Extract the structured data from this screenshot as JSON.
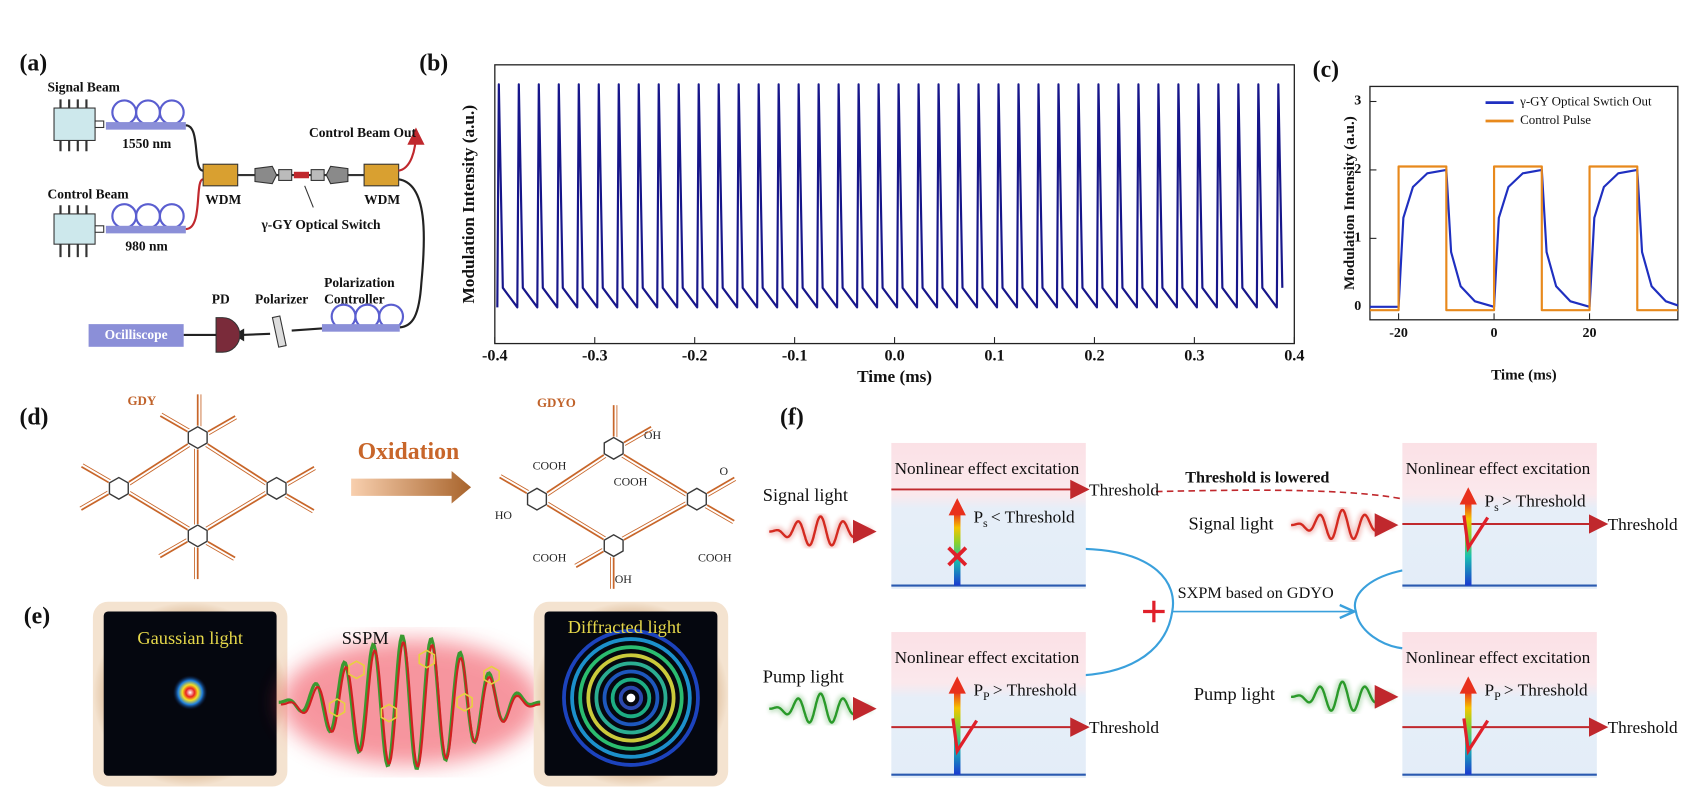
{
  "panel_labels": [
    "(a)",
    "(b)",
    "(c)",
    "(d)",
    "(e)",
    "(f)"
  ],
  "setup": {
    "signal_beam": "Signal Beam",
    "signal_wavelength": "1550 nm",
    "control_beam": "Control Beam",
    "control_wavelength": "980 nm",
    "wdm_in": "WDM",
    "wdm_out": "WDM",
    "control_out": "Control Beam Out",
    "switch": "γ-GY Optical Switch",
    "pol_controller": [
      "Polarization",
      "Controller"
    ],
    "pd": "PD",
    "polarizer": "Polarizer",
    "scope": "Ocilliscope"
  },
  "chart_data": [
    {
      "type": "line",
      "xlabel": "Time (ms)",
      "ylabel": "Modulation Intensity (a.u.)",
      "xlim": [
        -0.4,
        0.4
      ],
      "xticks": [
        -0.4,
        -0.3,
        -0.2,
        -0.1,
        {
          "value": 0,
          "label": "0.0"
        },
        0.1,
        0.2,
        0.3,
        0.4
      ],
      "ylim": [
        0,
        1
      ],
      "series": [
        {
          "color": "#17168a",
          "x": [
            -0.3975,
            -0.396,
            -0.392,
            -0.3775,
            -0.376,
            -0.372,
            -0.3575,
            -0.356,
            -0.352,
            -0.3375,
            -0.336,
            -0.332,
            -0.3175,
            -0.316,
            -0.312,
            -0.2975,
            -0.296,
            -0.292,
            -0.2775,
            -0.276,
            -0.272,
            -0.2575,
            -0.256,
            -0.252,
            -0.2375,
            -0.236,
            -0.232,
            -0.2175,
            -0.216,
            -0.212,
            -0.1975,
            -0.196,
            -0.192,
            -0.1775,
            -0.176,
            -0.172,
            -0.1575,
            -0.156,
            -0.152,
            -0.1375,
            -0.136,
            -0.132,
            -0.1175,
            -0.116,
            -0.112,
            -0.0975,
            -0.096,
            -0.092,
            -0.0775,
            -0.076,
            -0.072,
            -0.0575,
            -0.056,
            -0.052,
            -0.0375,
            -0.036,
            -0.032,
            -0.0175,
            -0.016,
            -0.012,
            0.0025,
            0.004,
            0.008,
            0.0225,
            0.024,
            0.028,
            0.0425,
            0.044,
            0.048,
            0.0625,
            0.064,
            0.068,
            0.0825,
            0.084,
            0.088,
            0.1025,
            0.104,
            0.108,
            0.1225,
            0.124,
            0.128,
            0.1425,
            0.144,
            0.148,
            0.1625,
            0.164,
            0.168,
            0.1825,
            0.184,
            0.188,
            0.2025,
            0.204,
            0.208,
            0.2225,
            0.224,
            0.228,
            0.2425,
            0.244,
            0.248,
            0.2625,
            0.264,
            0.268,
            0.2825,
            0.284,
            0.288,
            0.3025,
            0.304,
            0.308,
            0.3225,
            0.324,
            0.328,
            0.3425,
            0.344,
            0.348,
            0.3625,
            0.364,
            0.368,
            0.3825,
            0.384,
            0.388
          ],
          "values": [
            0.13,
            0.93,
            0.2,
            0.13,
            0.93,
            0.2,
            0.13,
            0.93,
            0.2,
            0.13,
            0.93,
            0.2,
            0.13,
            0.93,
            0.2,
            0.13,
            0.93,
            0.2,
            0.13,
            0.93,
            0.2,
            0.13,
            0.93,
            0.2,
            0.13,
            0.93,
            0.2,
            0.13,
            0.93,
            0.2,
            0.13,
            0.93,
            0.2,
            0.13,
            0.93,
            0.2,
            0.13,
            0.93,
            0.2,
            0.13,
            0.93,
            0.2,
            0.13,
            0.93,
            0.2,
            0.13,
            0.93,
            0.2,
            0.13,
            0.93,
            0.2,
            0.13,
            0.93,
            0.2,
            0.13,
            0.93,
            0.2,
            0.13,
            0.93,
            0.2,
            0.13,
            0.93,
            0.2,
            0.13,
            0.93,
            0.2,
            0.13,
            0.93,
            0.2,
            0.13,
            0.93,
            0.2,
            0.13,
            0.93,
            0.2,
            0.13,
            0.93,
            0.2,
            0.13,
            0.93,
            0.2,
            0.13,
            0.93,
            0.2,
            0.13,
            0.93,
            0.2,
            0.13,
            0.93,
            0.2,
            0.13,
            0.93,
            0.2,
            0.13,
            0.93,
            0.2,
            0.13,
            0.93,
            0.2,
            0.13,
            0.93,
            0.2,
            0.13,
            0.93,
            0.2,
            0.13,
            0.93,
            0.2,
            0.13,
            0.93,
            0.2,
            0.13,
            0.93,
            0.2,
            0.13,
            0.93,
            0.2,
            0.13,
            0.93,
            0.2
          ]
        }
      ]
    },
    {
      "type": "line",
      "xlabel": "Time (ms)",
      "ylabel": "Modulation Intensity (a.u.)",
      "xlim": [
        -26,
        38.5
      ],
      "xticks": [
        -20,
        0,
        20
      ],
      "ylim": [
        -0.19,
        3.22
      ],
      "yticks": [
        0,
        1,
        2,
        3
      ],
      "legend": "upper right",
      "series": [
        {
          "name": "γ-GY Optical Swtich Out",
          "color": "#1f2fc0",
          "x": [
            -26,
            -20,
            -19,
            -17,
            -14,
            -10,
            -9,
            -7,
            -4,
            0,
            1,
            3,
            6,
            10,
            11,
            13,
            16,
            20,
            21,
            23,
            26,
            30,
            31,
            33,
            36,
            38.5
          ],
          "values": [
            0,
            0,
            1.3,
            1.75,
            1.95,
            2.0,
            0.8,
            0.3,
            0.08,
            0,
            1.3,
            1.75,
            1.95,
            2.0,
            0.8,
            0.3,
            0.08,
            0,
            1.3,
            1.75,
            1.95,
            2.0,
            0.8,
            0.3,
            0.08,
            0.02
          ]
        },
        {
          "name": "Control Pulse",
          "color": "#e8891c",
          "x": [
            -26,
            -20,
            -20,
            -10,
            -10,
            0,
            0,
            10,
            10,
            20,
            20,
            30,
            30,
            38.5
          ],
          "values": [
            -0.05,
            -0.05,
            2.05,
            2.05,
            -0.05,
            -0.05,
            2.05,
            2.05,
            -0.05,
            -0.05,
            2.05,
            2.05,
            -0.05,
            -0.05
          ]
        }
      ]
    }
  ],
  "oxidation": {
    "reactant": "GDY",
    "product": "GDYO",
    "arrow_label": "Oxidation",
    "groups": [
      "COOH",
      "COOH",
      "OH",
      "HO",
      "COOH",
      "COOH",
      "OH",
      "O"
    ]
  },
  "sspm": {
    "input": "Gaussian light",
    "process": "SSPM",
    "output": "Diffracted light"
  },
  "sxpm": {
    "lowered": "Threshold is lowered",
    "mechanism": "SXPM based on GDYO",
    "cases": [
      {
        "light": "Signal light",
        "excitation": "Nonlinear effect excitation",
        "threshold": "Threshold",
        "condition": {
          "symbol": "P",
          "sub": "s",
          "relation": "< Threshold"
        }
      },
      {
        "light": "Signal light",
        "excitation": "Nonlinear effect excitation",
        "threshold": "Threshold",
        "condition": {
          "symbol": "P",
          "sub": "s",
          "relation": "> Threshold"
        }
      },
      {
        "light": "Pump light",
        "excitation": "Nonlinear effect excitation",
        "threshold": "Threshold",
        "condition": {
          "symbol": "P",
          "sub": "P",
          "relation": "> Threshold"
        }
      },
      {
        "light": "Pump light",
        "excitation": "Nonlinear effect excitation",
        "threshold": "Threshold",
        "condition": {
          "symbol": "P",
          "sub": "P",
          "relation": "> Threshold"
        }
      }
    ]
  }
}
